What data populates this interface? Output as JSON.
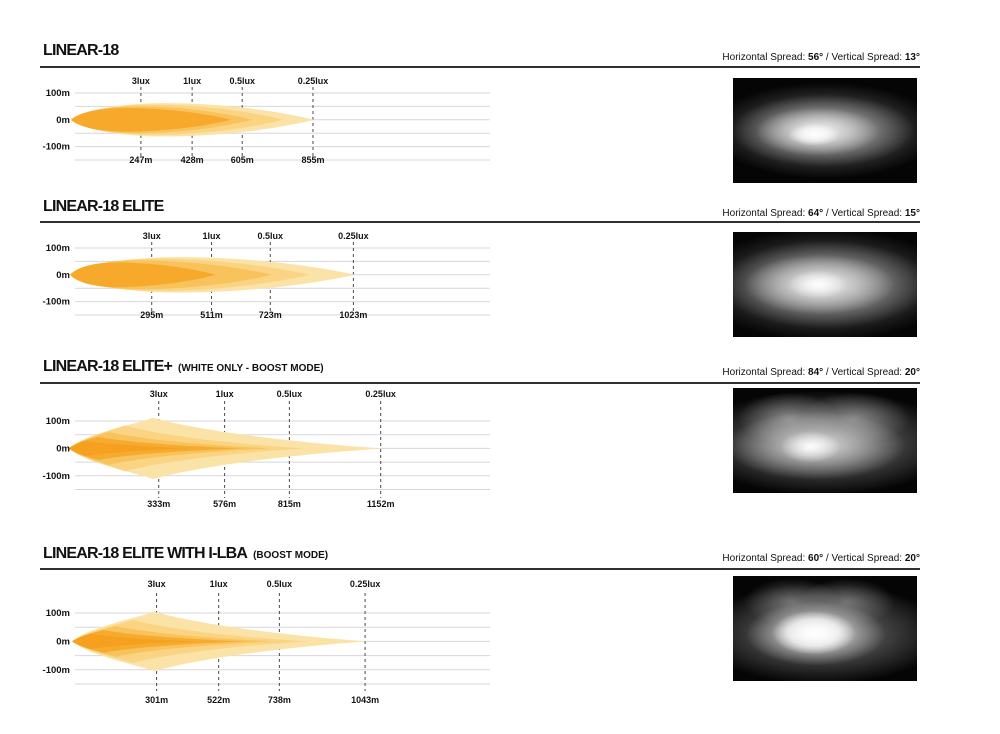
{
  "page": {
    "background": "#ffffff",
    "rule_color": "#303030",
    "text_color": "#141414"
  },
  "beam_palette": {
    "outer": "#FBE2A7",
    "mid2": "#FAD483",
    "mid1": "#F8C25C",
    "core": "#F6A92B",
    "hotspot": "#F5A01E"
  },
  "chart_data": [
    {
      "type": "area",
      "title": "LINEAR-18",
      "subtitle": "",
      "spread": {
        "horizontal_label": "Horizontal Spread:",
        "horizontal_value": "56°",
        "separator": "/",
        "vertical_label": "Vertical Spread:",
        "vertical_value": "13°"
      },
      "y_axis_labels": [
        "100m",
        "0m",
        "-100m"
      ],
      "gridlines_m": [
        100,
        50,
        0,
        -50,
        -100,
        -150
      ],
      "x_unit": "m",
      "markers": [
        {
          "lux": "3lux",
          "distance_label": "247m",
          "distance_m": 247
        },
        {
          "lux": "1lux",
          "distance_label": "428m",
          "distance_m": 428
        },
        {
          "lux": "0.5lux",
          "distance_label": "605m",
          "distance_m": 605
        },
        {
          "lux": "0.25lux",
          "distance_label": "855m",
          "distance_m": 855
        }
      ],
      "beam_shape": "lens",
      "beam_layers": [
        {
          "tip_m": 860,
          "half_height_m": 62,
          "peak_frac": 0.38,
          "color": "#FBE2A7"
        },
        {
          "tip_m": 750,
          "half_height_m": 56,
          "peak_frac": 0.38,
          "color": "#FAD483"
        },
        {
          "tip_m": 640,
          "half_height_m": 50,
          "peak_frac": 0.36,
          "color": "#F8C25C"
        },
        {
          "tip_m": 565,
          "half_height_m": 44,
          "peak_frac": 0.34,
          "color": "#F6A92B"
        }
      ]
    },
    {
      "type": "area",
      "title": "LINEAR-18 ELITE",
      "subtitle": "",
      "spread": {
        "horizontal_label": "Horizontal Spread:",
        "horizontal_value": "64°",
        "separator": "/",
        "vertical_label": "Vertical Spread:",
        "vertical_value": "15°"
      },
      "y_axis_labels": [
        "100m",
        "0m",
        "-100m"
      ],
      "gridlines_m": [
        100,
        50,
        0,
        -50,
        -100,
        -150
      ],
      "x_unit": "m",
      "markers": [
        {
          "lux": "3lux",
          "distance_label": "295m",
          "distance_m": 295
        },
        {
          "lux": "1lux",
          "distance_label": "511m",
          "distance_m": 511
        },
        {
          "lux": "0.5lux",
          "distance_label": "723m",
          "distance_m": 723
        },
        {
          "lux": "0.25lux",
          "distance_label": "1023m",
          "distance_m": 1023
        }
      ],
      "beam_shape": "lens",
      "beam_layers": [
        {
          "tip_m": 1030,
          "half_height_m": 66,
          "peak_frac": 0.38,
          "color": "#FBE2A7"
        },
        {
          "tip_m": 865,
          "half_height_m": 60,
          "peak_frac": 0.36,
          "color": "#FAD483"
        },
        {
          "tip_m": 728,
          "half_height_m": 54,
          "peak_frac": 0.34,
          "color": "#F8C25C"
        },
        {
          "tip_m": 525,
          "half_height_m": 46,
          "peak_frac": 0.32,
          "color": "#F6A92B"
        }
      ]
    },
    {
      "type": "area",
      "title": "LINEAR-18 ELITE+",
      "subtitle": "(WHITE ONLY - BOOST MODE)",
      "spread": {
        "horizontal_label": "Horizontal Spread:",
        "horizontal_value": "84°",
        "separator": "/",
        "vertical_label": "Vertical Spread:",
        "vertical_value": "20°"
      },
      "y_axis_labels": [
        "100m",
        "0m",
        "-100m"
      ],
      "gridlines_m": [
        100,
        50,
        0,
        -50,
        -100,
        -150
      ],
      "x_unit": "m",
      "markers": [
        {
          "lux": "3lux",
          "distance_label": "333m",
          "distance_m": 333
        },
        {
          "lux": "1lux",
          "distance_label": "576m",
          "distance_m": 576
        },
        {
          "lux": "0.5lux",
          "distance_label": "815m",
          "distance_m": 815
        },
        {
          "lux": "0.25lux",
          "distance_label": "1152m",
          "distance_m": 1152
        }
      ],
      "beam_shape": "spike",
      "beam_layers": [
        {
          "tip_m": 1160,
          "half_height_m": 112,
          "peak_frac": 0.27,
          "color": "#FBE2A7"
        },
        {
          "tip_m": 870,
          "half_height_m": 84,
          "peak_frac": 0.24,
          "color": "#FAD483"
        },
        {
          "tip_m": 750,
          "half_height_m": 60,
          "peak_frac": 0.2,
          "color": "#F8C25C"
        },
        {
          "tip_m": 645,
          "half_height_m": 42,
          "peak_frac": 0.17,
          "color": "#F6AB2E"
        },
        {
          "tip_m": 460,
          "half_height_m": 28,
          "peak_frac": 0.14,
          "color": "#F5A01E"
        }
      ]
    },
    {
      "type": "area",
      "title": "LINEAR-18 ELITE WITH I-LBA",
      "subtitle": "(BOOST MODE)",
      "spread": {
        "horizontal_label": "Horizontal Spread:",
        "horizontal_value": "60°",
        "separator": "/",
        "vertical_label": "Vertical Spread:",
        "vertical_value": "20°"
      },
      "y_axis_labels": [
        "100m",
        "0m",
        "-100m"
      ],
      "gridlines_m": [
        100,
        50,
        0,
        -50,
        -100,
        -150
      ],
      "x_unit": "m",
      "markers": [
        {
          "lux": "3lux",
          "distance_label": "301m",
          "distance_m": 301
        },
        {
          "lux": "1lux",
          "distance_label": "522m",
          "distance_m": 522
        },
        {
          "lux": "0.5lux",
          "distance_label": "738m",
          "distance_m": 738
        },
        {
          "lux": "0.25lux",
          "distance_label": "1043m",
          "distance_m": 1043
        }
      ],
      "beam_shape": "spike",
      "beam_layers": [
        {
          "tip_m": 1050,
          "half_height_m": 105,
          "peak_frac": 0.28,
          "color": "#FBE2A7"
        },
        {
          "tip_m": 835,
          "half_height_m": 76,
          "peak_frac": 0.26,
          "color": "#FAD483"
        },
        {
          "tip_m": 715,
          "half_height_m": 54,
          "peak_frac": 0.22,
          "color": "#F8C25C"
        },
        {
          "tip_m": 620,
          "half_height_m": 40,
          "peak_frac": 0.18,
          "color": "#F6AB2E"
        },
        {
          "tip_m": 440,
          "half_height_m": 27,
          "peak_frac": 0.15,
          "color": "#F5A01E"
        }
      ]
    }
  ]
}
